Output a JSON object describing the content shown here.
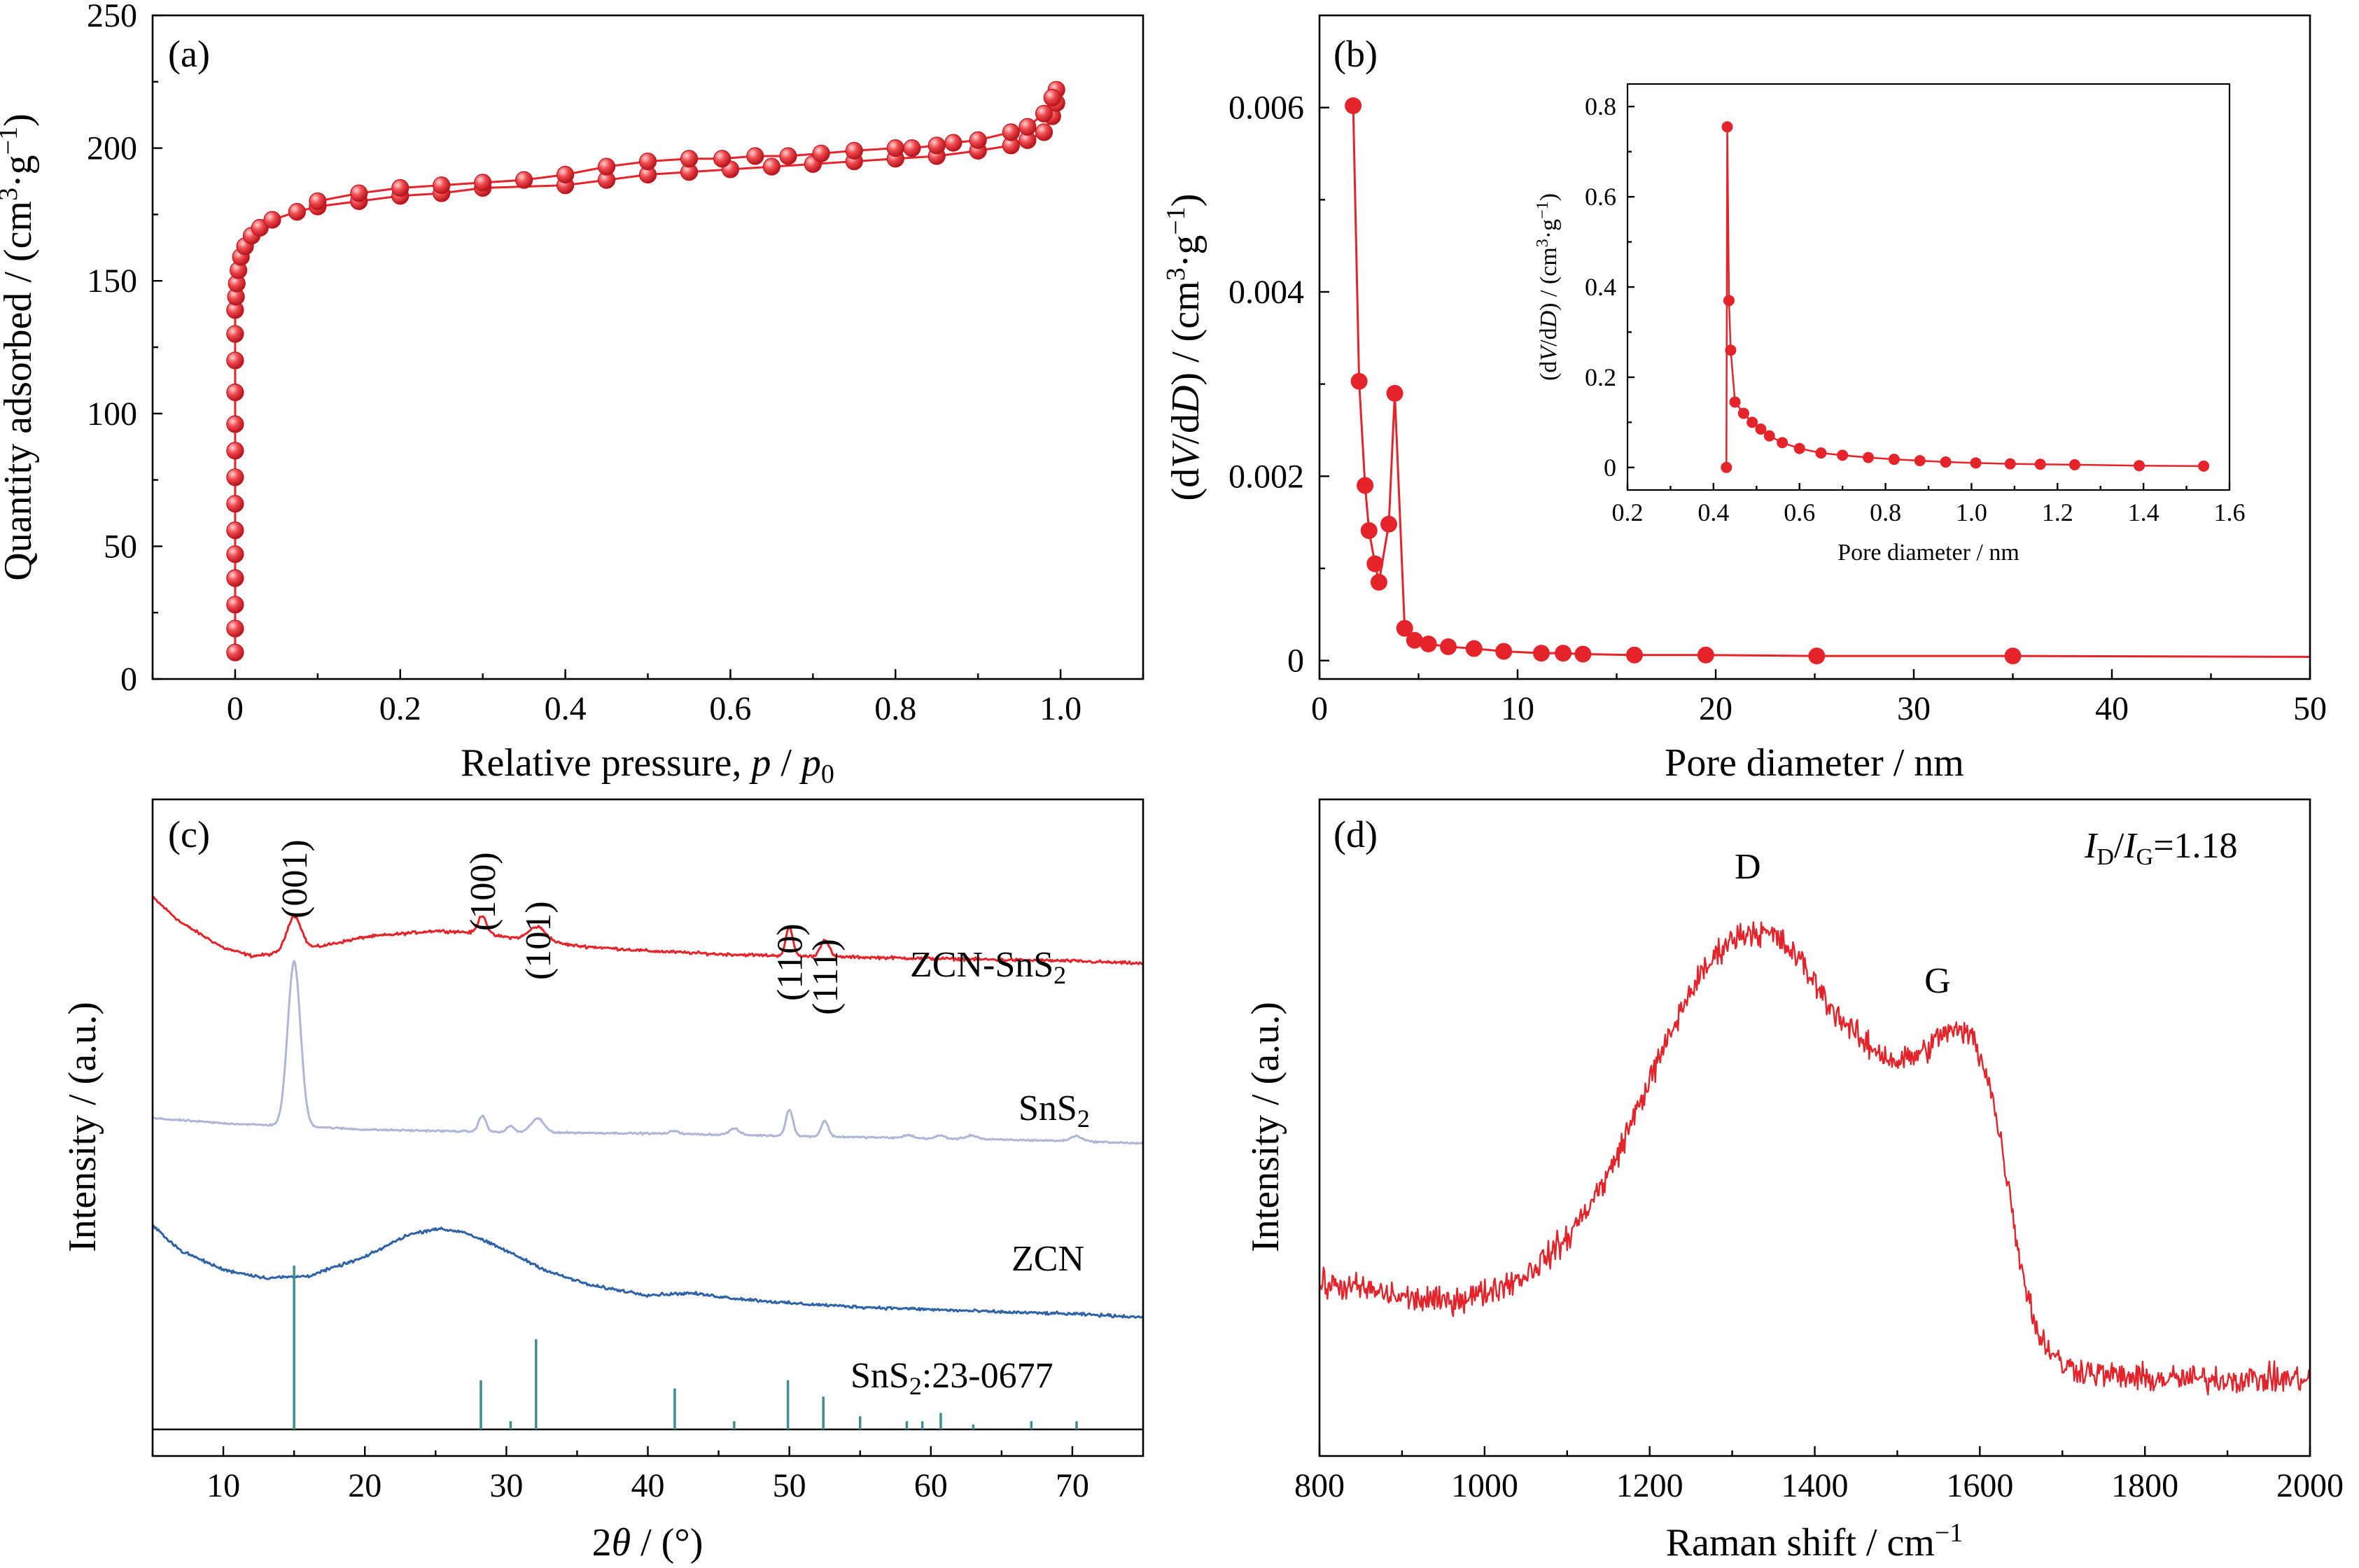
{
  "panels": {
    "a": {
      "label": "(a)"
    },
    "b": {
      "label": "(b)"
    },
    "c": {
      "label": "(c)"
    },
    "d": {
      "label": "(d)"
    }
  },
  "chart_data": [
    {
      "id": "a",
      "type": "scatter",
      "xlabel": "Relative pressure, p / p0",
      "xlabel_parts": [
        "Relative pressure, ",
        "p",
        " / ",
        "p",
        "0"
      ],
      "ylabel": "Quantity adsorbed / (cm3·g−1)",
      "ylabel_parts": [
        "Quantity adsorbed / (cm",
        "3",
        "·g",
        "−1",
        ")"
      ],
      "xlim": [
        -0.1,
        1.1
      ],
      "ylim": [
        0,
        250
      ],
      "xticks": [
        0,
        0.2,
        0.4,
        0.6,
        0.8,
        1.0
      ],
      "xticklabels": [
        "0",
        "0.2",
        "0.4",
        "0.6",
        "0.8",
        "1.0"
      ],
      "yticks": [
        0,
        50,
        100,
        150,
        200,
        250
      ],
      "yticklabels": [
        "0",
        "50",
        "100",
        "150",
        "200",
        "250"
      ],
      "color": "#e4232b",
      "series": [
        {
          "x": [
            0,
            0,
            0,
            0,
            0,
            0,
            0,
            0,
            0,
            0,
            0,
            0,
            0,
            0,
            0.001,
            0.002,
            0.004,
            0.007,
            0.012,
            0.02,
            0.03,
            0.045,
            0.075,
            0.1,
            0.15,
            0.2,
            0.25,
            0.3,
            0.4,
            0.45,
            0.5,
            0.55,
            0.6,
            0.65,
            0.7,
            0.75,
            0.8,
            0.85,
            0.9,
            0.94,
            0.96,
            0.98,
            0.99,
            0.995
          ],
          "y": [
            10,
            19,
            28,
            38,
            47,
            56,
            66,
            76,
            86,
            96,
            108,
            120,
            130,
            139,
            144,
            149,
            154,
            159,
            163,
            167,
            170,
            173,
            176,
            178,
            180,
            182,
            183,
            185,
            186,
            188,
            190,
            191,
            192,
            193,
            194,
            195,
            196,
            197,
            199,
            201,
            203,
            206,
            212,
            217
          ]
        },
        {
          "x": [
            0.995,
            0.99,
            0.98,
            0.96,
            0.94,
            0.9,
            0.87,
            0.85,
            0.82,
            0.8,
            0.75,
            0.71,
            0.67,
            0.63,
            0.59,
            0.55,
            0.5,
            0.45,
            0.4,
            0.35,
            0.3,
            0.25,
            0.2,
            0.15,
            0.1
          ],
          "y": [
            222,
            219,
            213,
            208,
            206,
            203,
            202,
            201,
            200,
            200,
            199,
            198,
            197,
            197,
            196,
            196,
            195,
            193,
            190,
            188,
            187,
            186,
            185,
            183,
            180
          ]
        }
      ]
    },
    {
      "id": "b",
      "type": "line",
      "xlabel": "Pore diameter / nm",
      "ylabel": "(dV/dD) / (cm3·g−1)",
      "ylabel_parts": [
        "(d",
        "V",
        "/d",
        "D",
        ") / (cm",
        "3",
        "·g",
        "−1",
        ")"
      ],
      "xlim": [
        0,
        50
      ],
      "ylim": [
        -0.0002,
        0.007
      ],
      "xticks": [
        0,
        10,
        20,
        30,
        40,
        50
      ],
      "xticklabels": [
        "0",
        "10",
        "20",
        "30",
        "40",
        "50"
      ],
      "yticks": [
        0,
        0.002,
        0.004,
        0.006
      ],
      "yticklabels": [
        "0",
        "0.002",
        "0.004",
        "0.006"
      ],
      "color": "#e4232b",
      "x": [
        1.7,
        2.0,
        2.3,
        2.5,
        2.8,
        3.0,
        3.5,
        3.8,
        4.3,
        4.8,
        5.5,
        6.5,
        7.8,
        9.3,
        11.2,
        12.3,
        13.3,
        15.9,
        19.5,
        25.1,
        35.0,
        50.0
      ],
      "y": [
        0.00602,
        0.00303,
        0.0019,
        0.00141,
        0.00105,
        0.00085,
        0.00148,
        0.0029,
        0.00035,
        0.00022,
        0.00018,
        0.00015,
        0.00013,
        0.0001,
        8e-05,
        8e-05,
        7e-05,
        6e-05,
        6e-05,
        5e-05,
        5e-05,
        4e-05
      ],
      "markers_until_index": 20,
      "inset": {
        "type": "line",
        "xlabel": "Pore diameter / nm",
        "ylabel": "(dV/dD) / (cm3·g−1)",
        "ylabel_parts": [
          "(d",
          "V",
          "/d",
          "D",
          ") / (cm",
          "3",
          "·g",
          "−1",
          ")"
        ],
        "xlim": [
          0.2,
          1.6
        ],
        "ylim": [
          -0.05,
          0.85
        ],
        "xticks": [
          0.2,
          0.4,
          0.6,
          0.8,
          1.0,
          1.2,
          1.4,
          1.6
        ],
        "xticklabels": [
          "0.2",
          "0.4",
          "0.6",
          "0.8",
          "1.0",
          "1.2",
          "1.4",
          "1.6"
        ],
        "yticks": [
          0,
          0.2,
          0.4,
          0.6,
          0.8
        ],
        "yticklabels": [
          "0",
          "0.2",
          "0.4",
          "0.6",
          "0.8"
        ],
        "x": [
          0.43,
          0.432,
          0.436,
          0.44,
          0.45,
          0.47,
          0.49,
          0.51,
          0.53,
          0.56,
          0.6,
          0.65,
          0.7,
          0.76,
          0.82,
          0.88,
          0.94,
          1.01,
          1.09,
          1.16,
          1.24,
          1.39,
          1.54
        ],
        "y": [
          0.0,
          0.755,
          0.37,
          0.26,
          0.145,
          0.12,
          0.1,
          0.085,
          0.07,
          0.055,
          0.042,
          0.032,
          0.027,
          0.022,
          0.018,
          0.015,
          0.012,
          0.01,
          0.008,
          0.007,
          0.006,
          0.004,
          0.003
        ]
      }
    },
    {
      "id": "c",
      "type": "line",
      "xlabel": "2θ / (°)",
      "xlabel_parts": [
        "2",
        "θ",
        " / (°)"
      ],
      "ylabel": "Intensity / (a.u.)",
      "xlim": [
        5,
        75
      ],
      "xticks": [
        10,
        20,
        30,
        40,
        50,
        60,
        70
      ],
      "xticklabels": [
        "10",
        "20",
        "30",
        "40",
        "50",
        "60",
        "70"
      ],
      "ylim": [
        -0.2,
        10.2
      ],
      "yticks_shown": false,
      "series": [
        {
          "name": "ZCN-SnS2",
          "name_parts": [
            "ZCN-SnS",
            "2"
          ],
          "color": "#e4232b",
          "offset": 7.6,
          "baseline": {
            "x": [
              5,
              7,
              10,
              12,
              13.5,
              17,
              20,
              25,
              27,
              30,
              33,
              35,
              40,
              45,
              50,
              55,
              60,
              65,
              70,
              75
            ],
            "y": [
              1.05,
              0.65,
              0.25,
              0.12,
              0.15,
              0.28,
              0.42,
              0.52,
              0.5,
              0.42,
              0.34,
              0.28,
              0.2,
              0.15,
              0.12,
              0.1,
              0.08,
              0.06,
              0.04,
              0.0
            ]
          },
          "peaks": [
            [
              15.0,
              0.55,
              0.5
            ],
            [
              28.3,
              0.3,
              0.3
            ],
            [
              32.2,
              0.22,
              0.6
            ],
            [
              50.0,
              0.45,
              0.25
            ],
            [
              52.5,
              0.27,
              0.3
            ]
          ],
          "noise": 0.035
        },
        {
          "name": "SnS2",
          "name_parts": [
            "SnS",
            "2"
          ],
          "color": "#aeb6d8",
          "offset": 4.75,
          "baseline": {
            "x": [
              5,
              10,
              12,
              15,
              20,
              25,
              30,
              35,
              40,
              45,
              50,
              55,
              60,
              65,
              70,
              75
            ],
            "y": [
              0.4,
              0.32,
              0.3,
              0.28,
              0.22,
              0.2,
              0.18,
              0.17,
              0.16,
              0.14,
              0.12,
              0.1,
              0.08,
              0.06,
              0.04,
              0.0
            ]
          },
          "peaks": [
            [
              15.0,
              2.6,
              0.45
            ],
            [
              28.3,
              0.26,
              0.25
            ],
            [
              30.3,
              0.1,
              0.25
            ],
            [
              32.2,
              0.22,
              0.45
            ],
            [
              41.9,
              0.05,
              0.3
            ],
            [
              46.1,
              0.1,
              0.35
            ],
            [
              50.0,
              0.42,
              0.25
            ],
            [
              52.5,
              0.25,
              0.25
            ],
            [
              58.4,
              0.05,
              0.3
            ],
            [
              60.7,
              0.05,
              0.3
            ],
            [
              62.9,
              0.06,
              0.4
            ],
            [
              70.3,
              0.08,
              0.4
            ]
          ],
          "noise": 0.02
        },
        {
          "name": "ZCN",
          "color": "#2d63a6",
          "offset": 2.0,
          "baseline": {
            "x": [
              5,
              7,
              10,
              13,
              16,
              20,
              23,
              25,
              27,
              30,
              33,
              36,
              40,
              43,
              46,
              50,
              55,
              60,
              65,
              70,
              75
            ],
            "y": [
              1.45,
              1.05,
              0.75,
              0.62,
              0.65,
              0.95,
              1.3,
              1.4,
              1.35,
              1.05,
              0.72,
              0.5,
              0.35,
              0.38,
              0.3,
              0.22,
              0.16,
              0.12,
              0.08,
              0.05,
              0.0
            ]
          },
          "peaks": [],
          "noise": 0.035
        }
      ],
      "reference": {
        "name": "SnS2:23-0677",
        "name_parts": [
          "SnS",
          "2",
          ":23-0677"
        ],
        "color": "#3d8f8f",
        "positions": [
          15.0,
          28.2,
          30.3,
          32.1,
          41.9,
          46.1,
          49.9,
          52.4,
          55.0,
          58.3,
          59.4,
          60.7,
          63.0,
          67.1,
          70.3
        ],
        "intensities": [
          100,
          30,
          5,
          55,
          25,
          5,
          30,
          20,
          8,
          5,
          5,
          10,
          3,
          5,
          5
        ]
      },
      "annotations": [
        "(001)",
        "(100)",
        "(101)",
        "(110)",
        "(111)"
      ],
      "annotation_x": [
        15.0,
        28.3,
        32.2,
        50.0,
        52.5
      ]
    },
    {
      "id": "d",
      "type": "line",
      "xlabel": "Raman shift / cm−1",
      "xlabel_parts": [
        "Raman shift / cm",
        "−1"
      ],
      "ylabel": "Intensity / (a.u.)",
      "xlim": [
        800,
        2000
      ],
      "xticks": [
        800,
        1000,
        1200,
        1400,
        1600,
        1800,
        2000
      ],
      "xticklabels": [
        "800",
        "1000",
        "1200",
        "1400",
        "1600",
        "1800",
        "2000"
      ],
      "ylim": [
        0,
        1.45
      ],
      "yticks_shown": false,
      "color": "#e4232b",
      "envelope": {
        "x": [
          800,
          850,
          900,
          950,
          1000,
          1050,
          1100,
          1150,
          1200,
          1250,
          1290,
          1320,
          1350,
          1380,
          1420,
          1460,
          1500,
          1530,
          1560,
          1590,
          1610,
          1630,
          1650,
          1670,
          1700,
          1750,
          1800,
          1900,
          2000
        ],
        "y": [
          0.38,
          0.37,
          0.35,
          0.34,
          0.36,
          0.4,
          0.48,
          0.62,
          0.83,
          1.03,
          1.13,
          1.16,
          1.15,
          1.1,
          0.99,
          0.91,
          0.87,
          0.89,
          0.94,
          0.93,
          0.84,
          0.65,
          0.42,
          0.27,
          0.2,
          0.18,
          0.17,
          0.17,
          0.17
        ]
      },
      "noise": 0.045,
      "annotations": [
        "D",
        "G"
      ],
      "annotation_x": [
        1340,
        1570
      ],
      "ratio_text": "ID/IG=1.18",
      "ratio_parts": [
        "I",
        "D",
        "/",
        "I",
        "G",
        "=1.18"
      ]
    }
  ]
}
